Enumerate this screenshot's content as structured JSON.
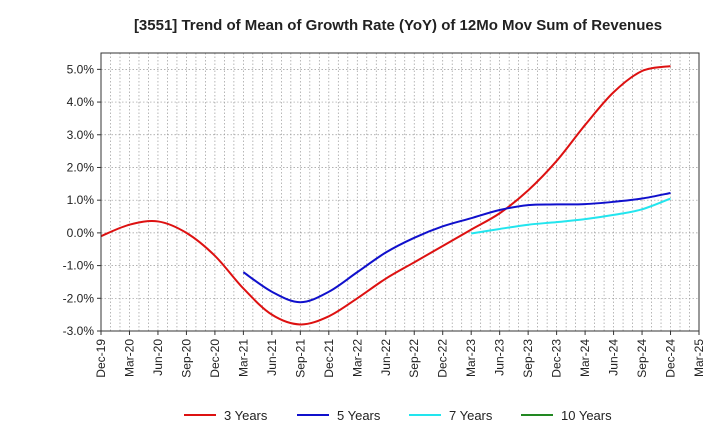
{
  "chart_data": {
    "type": "line",
    "title": "[3551]  Trend of Mean of Growth Rate (YoY) of 12Mo Mov Sum of Revenues",
    "xlabel": "",
    "ylabel": "",
    "x_tick_labels": [
      "Dec-19",
      "Mar-20",
      "Jun-20",
      "Sep-20",
      "Dec-20",
      "Mar-21",
      "Jun-21",
      "Sep-21",
      "Dec-21",
      "Mar-22",
      "Jun-22",
      "Sep-22",
      "Dec-22",
      "Mar-23",
      "Jun-23",
      "Sep-23",
      "Dec-23",
      "Mar-24",
      "Jun-24",
      "Sep-24",
      "Dec-24",
      "Mar-25"
    ],
    "y_ticks": [
      -3.0,
      -2.0,
      -1.0,
      0.0,
      1.0,
      2.0,
      3.0,
      4.0,
      5.0
    ],
    "y_tick_labels": [
      "-3.0%",
      "-2.0%",
      "-1.0%",
      "0.0%",
      "1.0%",
      "2.0%",
      "3.0%",
      "4.0%",
      "5.0%"
    ],
    "ylim": [
      -3.0,
      5.5
    ],
    "xlim": [
      0,
      63
    ],
    "grid": true,
    "legend_position": "bottom",
    "series": [
      {
        "name": "3 Years",
        "color": "#dd1111",
        "x": [
          0,
          3,
          6,
          9,
          12,
          15,
          18,
          21,
          24,
          27,
          30,
          33,
          36,
          39,
          42,
          45,
          48,
          51,
          54,
          57,
          60
        ],
        "values": [
          -0.1,
          0.25,
          0.35,
          0.0,
          -0.7,
          -1.7,
          -2.5,
          -2.8,
          -2.55,
          -2.0,
          -1.4,
          -0.9,
          -0.4,
          0.1,
          0.6,
          1.3,
          2.2,
          3.3,
          4.3,
          4.95,
          5.1
        ]
      },
      {
        "name": "5 Years",
        "color": "#1010cc",
        "x": [
          15,
          18,
          21,
          24,
          27,
          30,
          33,
          36,
          39,
          42,
          45,
          48,
          51,
          54,
          57,
          60
        ],
        "values": [
          -1.2,
          -1.8,
          -2.12,
          -1.8,
          -1.2,
          -0.6,
          -0.15,
          0.2,
          0.45,
          0.7,
          0.85,
          0.87,
          0.88,
          0.95,
          1.05,
          1.22
        ]
      },
      {
        "name": "7 Years",
        "color": "#22e5ee",
        "x": [
          39,
          42,
          45,
          48,
          51,
          54,
          57,
          60
        ],
        "values": [
          -0.02,
          0.12,
          0.25,
          0.33,
          0.42,
          0.55,
          0.72,
          1.05
        ]
      },
      {
        "name": "10 Years",
        "color": "#228822",
        "x": [],
        "values": []
      }
    ]
  }
}
